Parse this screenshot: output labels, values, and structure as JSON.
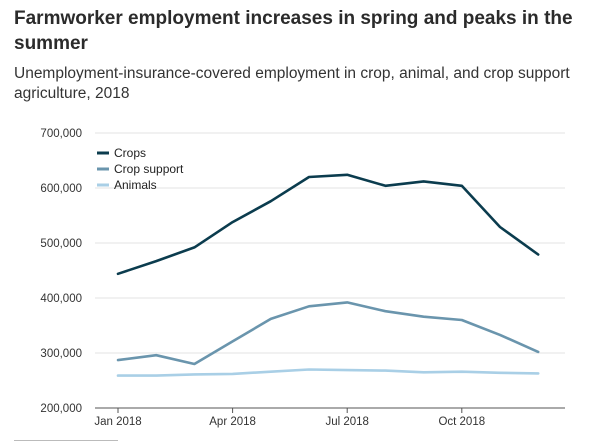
{
  "chart_data": {
    "type": "line",
    "title": "Farmworker employment increases in spring and peaks in the summer",
    "subtitle": "Unemployment-insurance-covered employment in crop, animal, and crop support agriculture, 2018",
    "xlabel": "",
    "ylabel": "",
    "x": [
      "Jan 2018",
      "Feb 2018",
      "Mar 2018",
      "Apr 2018",
      "May 2018",
      "Jun 2018",
      "Jul 2018",
      "Aug 2018",
      "Sep 2018",
      "Oct 2018",
      "Nov 2018",
      "Dec 2018"
    ],
    "x_ticks": [
      {
        "label": "Jan 2018",
        "index": 0
      },
      {
        "label": "Apr 2018",
        "index": 3
      },
      {
        "label": "Jul 2018",
        "index": 6
      },
      {
        "label": "Oct 2018",
        "index": 9
      }
    ],
    "ylim": [
      200000,
      700000
    ],
    "y_ticks": [
      {
        "value": 200000,
        "label": "200,000"
      },
      {
        "value": 300000,
        "label": "300,000"
      },
      {
        "value": 400000,
        "label": "400,000"
      },
      {
        "value": 500000,
        "label": "500,000"
      },
      {
        "value": 600000,
        "label": "600,000"
      },
      {
        "value": 700000,
        "label": "700,000"
      }
    ],
    "grid": "horizontal",
    "legend_position": "top-left",
    "series": [
      {
        "name": "Crops",
        "color": "#0b3c4e",
        "values": [
          444000,
          467000,
          492000,
          538000,
          576000,
          620000,
          624000,
          604000,
          612000,
          604000,
          529000,
          479000
        ]
      },
      {
        "name": "Crop support",
        "color": "#6a95ad",
        "values": [
          287000,
          296000,
          280000,
          321000,
          362000,
          385000,
          392000,
          376000,
          366000,
          360000,
          333000,
          302000
        ]
      },
      {
        "name": "Animals",
        "color": "#a9cfe6",
        "values": [
          259000,
          259000,
          261000,
          262000,
          266000,
          270000,
          269000,
          268000,
          265000,
          266000,
          264000,
          263000
        ]
      }
    ]
  }
}
